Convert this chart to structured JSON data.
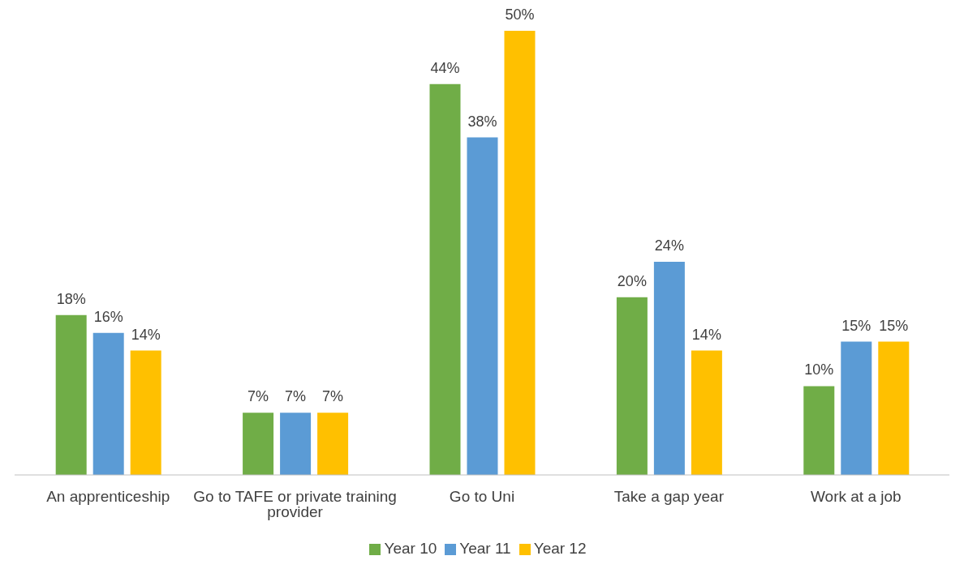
{
  "chart_data": {
    "type": "bar",
    "categories": [
      "An apprenticeship",
      "Go to TAFE or private training provider",
      "Go to Uni",
      "Take a gap year",
      "Work at a job"
    ],
    "series": [
      {
        "name": "Year 10",
        "color": "#70ad47",
        "values": [
          18,
          7,
          44,
          20,
          10
        ],
        "value_labels": [
          "18%",
          "7%",
          "44%",
          "20%",
          "10%"
        ]
      },
      {
        "name": "Year 11",
        "color": "#5b9bd5",
        "values": [
          16,
          7,
          38,
          24,
          15
        ],
        "value_labels": [
          "16%",
          "7%",
          "38%",
          "24%",
          "15%"
        ]
      },
      {
        "name": "Year 12",
        "color": "#ffc000",
        "values": [
          14,
          7,
          50,
          14,
          15
        ],
        "value_labels": [
          "14%",
          "7%",
          "50%",
          "14%",
          "15%"
        ]
      }
    ],
    "legend": "bottom",
    "grid": false
  }
}
